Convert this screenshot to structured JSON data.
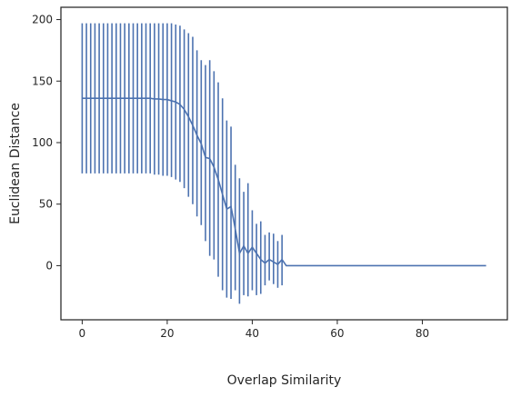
{
  "chart_data": {
    "type": "line",
    "title": "",
    "xlabel": "Overlap Similarity",
    "ylabel": "Euclidean Distance",
    "xlim": [
      -5,
      100
    ],
    "ylim": [
      -44,
      210
    ],
    "xticks": [
      0,
      20,
      40,
      60,
      80
    ],
    "yticks": [
      0,
      50,
      100,
      150,
      200
    ],
    "grid": false,
    "legend": "none",
    "colors": {
      "line": "#4c72b0",
      "errorbar": "#4c72b0",
      "axes": "#262626"
    },
    "series": [
      {
        "x": [
          0,
          1,
          2,
          3,
          4,
          5,
          6,
          7,
          8,
          9,
          10,
          11,
          12,
          13,
          14,
          15,
          16,
          17,
          18,
          19,
          20,
          21,
          22,
          23,
          24,
          25,
          26,
          27,
          28,
          29,
          30,
          31,
          32,
          33,
          34,
          35,
          36,
          37,
          38,
          39,
          40,
          41,
          42,
          43,
          44,
          45,
          46,
          47,
          48,
          49,
          50,
          51,
          52,
          53,
          54,
          55,
          56,
          57,
          58,
          59,
          60,
          61,
          62,
          63,
          64,
          65,
          66,
          67,
          68,
          69,
          70,
          71,
          72,
          73,
          74,
          75,
          76,
          77,
          78,
          79,
          80,
          81,
          82,
          83,
          84,
          85,
          86,
          87,
          88,
          89,
          90,
          91,
          92,
          93,
          94,
          95
        ],
        "y": [
          136,
          136,
          136,
          136,
          136,
          136,
          136,
          136,
          136,
          136,
          136,
          136,
          136,
          136,
          136,
          136,
          136,
          135.5,
          135.5,
          135,
          135,
          134,
          133,
          131,
          127,
          121,
          114,
          106,
          99,
          88,
          87,
          80,
          70,
          58,
          46,
          48,
          30,
          10,
          16,
          10,
          15,
          10,
          5,
          2,
          5,
          3,
          1,
          5,
          0,
          0,
          0,
          0,
          0,
          0,
          0,
          0,
          0,
          0,
          0,
          0,
          0,
          0,
          0,
          0,
          0,
          0,
          0,
          0,
          0,
          0,
          0,
          0,
          0,
          0,
          0,
          0,
          0,
          0,
          0,
          0,
          0,
          0,
          0,
          0,
          0,
          0,
          0,
          0,
          0,
          0,
          0,
          0,
          0,
          0,
          0,
          0
        ],
        "err_low": [
          75,
          75,
          75,
          75,
          75,
          75,
          75,
          75,
          75,
          75,
          75,
          75,
          75,
          75,
          75,
          75,
          75,
          74,
          74,
          73,
          73,
          72,
          70,
          68,
          63,
          56,
          50,
          40,
          33,
          20,
          8,
          5,
          -9,
          -20,
          -26,
          -27,
          -20,
          -31,
          -24,
          -25,
          -20,
          -24,
          -23,
          -16,
          -12,
          -15,
          -18,
          -16,
          0,
          0,
          0,
          0,
          0,
          0,
          0,
          0,
          0,
          0,
          0,
          0,
          0,
          0,
          0,
          0,
          0,
          0,
          0,
          0,
          0,
          0,
          0,
          0,
          0,
          0,
          0,
          0,
          0,
          0,
          0,
          0,
          0,
          0,
          0,
          0,
          0,
          0,
          0,
          0,
          0,
          0,
          0,
          0,
          0,
          0,
          0,
          0
        ],
        "err_high": [
          197,
          197,
          197,
          197,
          197,
          197,
          197,
          197,
          197,
          197,
          197,
          197,
          197,
          197,
          197,
          197,
          197,
          197,
          197,
          197,
          197,
          197,
          196,
          195,
          192,
          189,
          186,
          175,
          167,
          163,
          167,
          158,
          149,
          136,
          118,
          113,
          82,
          71,
          60,
          67,
          45,
          34,
          36,
          25,
          27,
          26,
          20,
          25,
          0,
          0,
          0,
          0,
          0,
          0,
          0,
          0,
          0,
          0,
          0,
          0,
          0,
          0,
          0,
          0,
          0,
          0,
          0,
          0,
          0,
          0,
          0,
          0,
          0,
          0,
          0,
          0,
          0,
          0,
          0,
          0,
          0,
          0,
          0,
          0,
          0,
          0,
          0,
          0,
          0,
          0,
          0,
          0,
          0,
          0,
          0,
          0
        ]
      }
    ]
  }
}
